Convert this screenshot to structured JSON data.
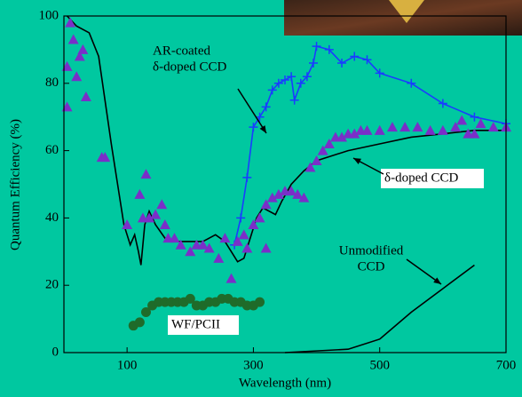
{
  "chart_data": {
    "type": "line",
    "xlabel": "Wavelength (nm)",
    "ylabel": "Quantum Efficiency (%)",
    "xlim": [
      0,
      700
    ],
    "ylim": [
      0,
      100
    ],
    "xticks": [
      100,
      300,
      500,
      700
    ],
    "yticks": [
      0,
      20,
      40,
      60,
      80,
      100
    ],
    "background": "#00c8a0",
    "series": [
      {
        "style": "line",
        "color": "#000000",
        "x": [
          5,
          20,
          40,
          55,
          65,
          75,
          85,
          95,
          105,
          112,
          118,
          122,
          128,
          135,
          145,
          160,
          180,
          200,
          220,
          240,
          255,
          265,
          275,
          285,
          295,
          305,
          315,
          325,
          335,
          345,
          360,
          380,
          400,
          450,
          500,
          550,
          600,
          650,
          700
        ],
        "values": [
          100,
          97,
          95,
          88,
          75,
          62,
          50,
          38,
          32,
          35,
          30,
          26,
          38,
          42,
          38,
          34,
          33,
          33,
          33,
          35,
          33,
          30,
          27,
          28,
          34,
          40,
          43,
          42,
          41,
          45,
          50,
          54,
          57,
          60,
          62,
          64,
          65,
          66,
          66
        ]
      },
      {
        "style": "line",
        "color": "#000000",
        "x": [
          350,
          450,
          500,
          550,
          600,
          650
        ],
        "values": [
          0,
          1,
          4,
          12,
          19,
          26
        ]
      },
      {
        "style": "line+plus",
        "color": "#1a3cff",
        "x": [
          270,
          280,
          290,
          300,
          310,
          320,
          330,
          340,
          350,
          360,
          365,
          375,
          385,
          395,
          400,
          420,
          440,
          460,
          480,
          500,
          550,
          600,
          650,
          700
        ],
        "values": [
          32,
          40,
          52,
          67,
          70,
          73,
          78,
          80,
          81,
          82,
          75,
          80,
          82,
          86,
          91,
          90,
          86,
          88,
          87,
          83,
          80,
          74,
          70,
          68
        ]
      },
      {
        "style": "triangle",
        "color": "#7a2fc8",
        "x": [
          5,
          5,
          10,
          15,
          20,
          25,
          30,
          35,
          60,
          65,
          100,
          120,
          125,
          130,
          135,
          145,
          155,
          160,
          165,
          175,
          185,
          200,
          210,
          220,
          230,
          245,
          255,
          265,
          275,
          285,
          290,
          300,
          310,
          320,
          320,
          330,
          340,
          350,
          360,
          370,
          380,
          390,
          400,
          410,
          420,
          430,
          440,
          450,
          460,
          470,
          480,
          500,
          520,
          540,
          560,
          580,
          600,
          620,
          630,
          640,
          650,
          660,
          680,
          700
        ],
        "values": [
          73,
          85,
          98,
          93,
          82,
          88,
          90,
          76,
          58,
          58,
          38,
          47,
          40,
          53,
          40,
          41,
          44,
          38,
          34,
          34,
          32,
          30,
          32,
          32,
          31,
          28,
          34,
          22,
          33,
          35,
          31,
          38,
          40,
          44,
          31,
          46,
          47,
          48,
          48,
          47,
          46,
          55,
          57,
          60,
          62,
          64,
          64,
          65,
          65,
          66,
          66,
          66,
          67,
          67,
          67,
          66,
          66,
          67,
          69,
          65,
          65,
          68,
          67,
          67
        ]
      },
      {
        "style": "circle",
        "color": "#1f6b2a",
        "x": [
          110,
          120,
          130,
          140,
          150,
          160,
          170,
          180,
          190,
          200,
          210,
          220,
          230,
          240,
          250,
          260,
          270,
          280,
          290,
          300,
          310
        ],
        "values": [
          8,
          9,
          12,
          14,
          15,
          15,
          15,
          15,
          15,
          16,
          14,
          14,
          15,
          15,
          16,
          16,
          15,
          15,
          14,
          14,
          15
        ]
      }
    ],
    "annotations": [
      {
        "lines": [
          "AR-coated",
          "δ-doped CCD"
        ]
      },
      {
        "lines": [
          "δ-doped CCD"
        ]
      },
      {
        "lines": [
          "Unmodified",
          "CCD"
        ]
      },
      {
        "lines": [
          "WF/PCII"
        ]
      }
    ]
  }
}
